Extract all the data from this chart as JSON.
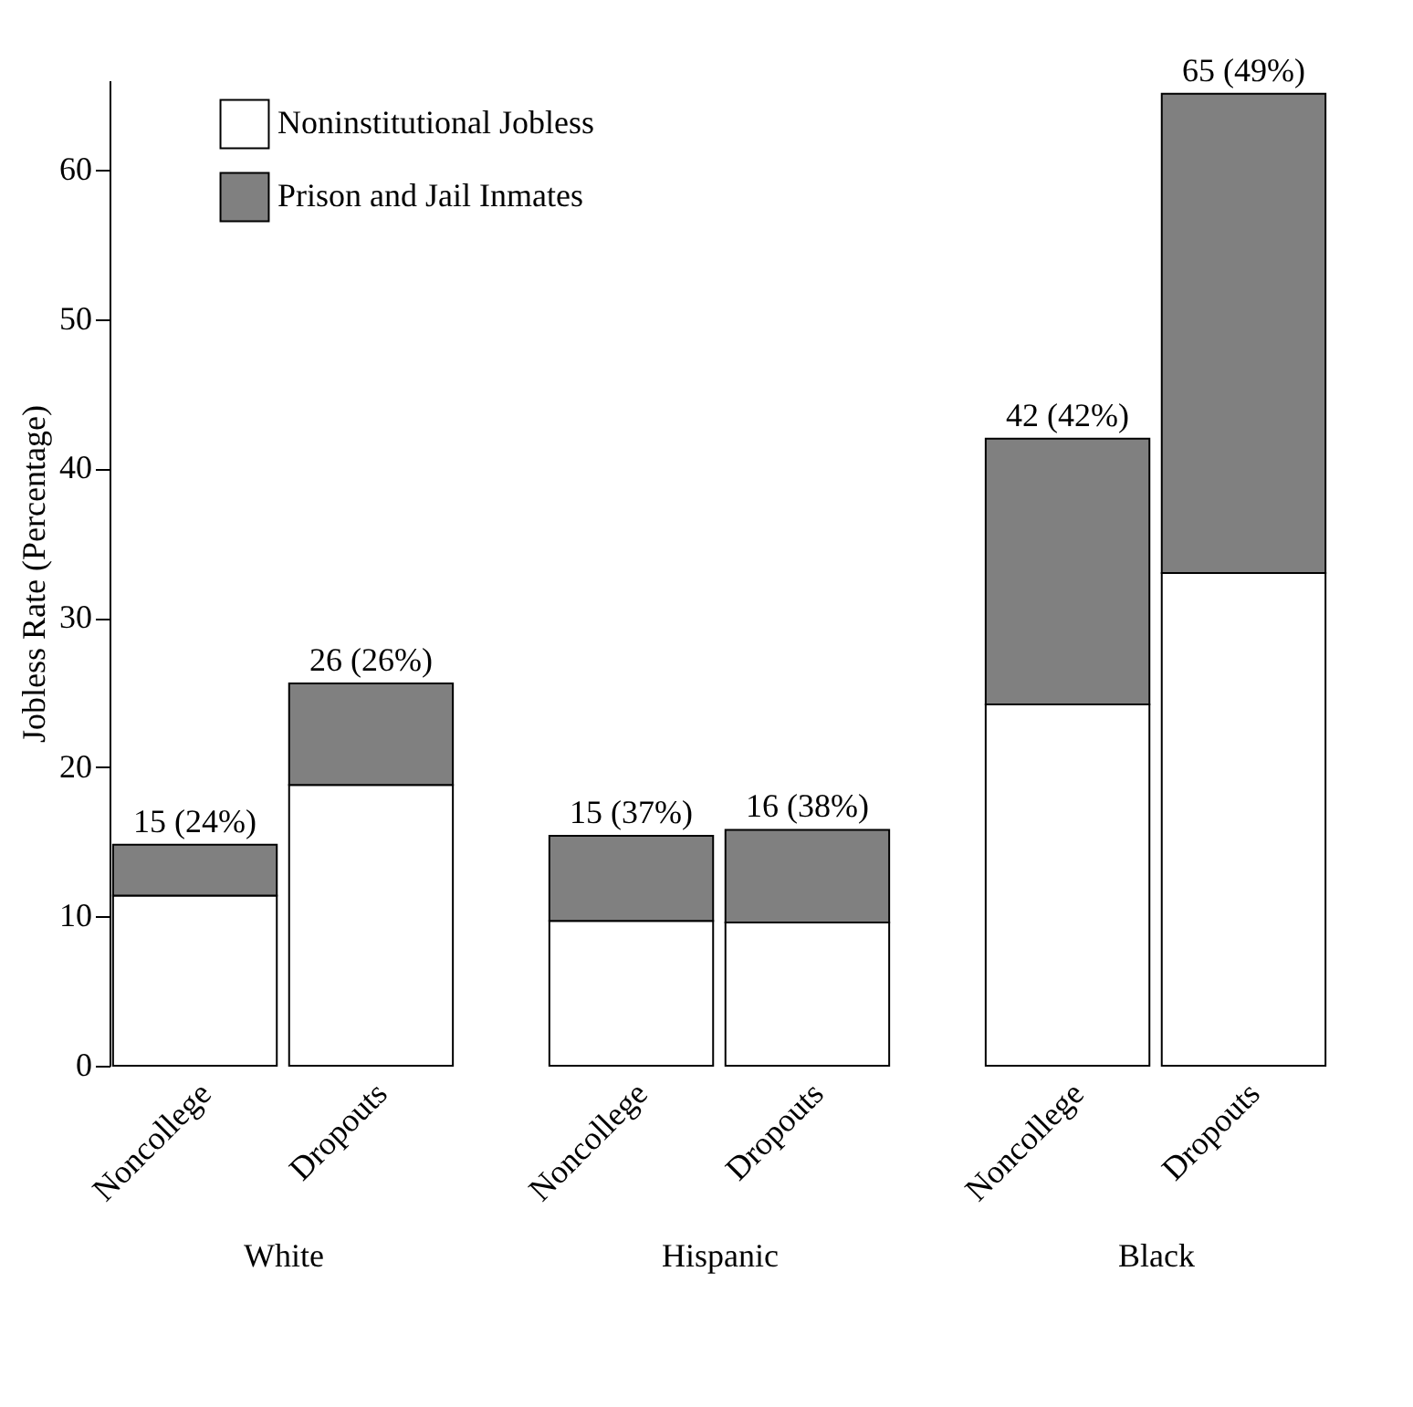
{
  "chart_data": {
    "type": "bar",
    "stacked": true,
    "ylabel": "Jobless Rate (Percentage)",
    "categories": [
      "Noncollege",
      "Dropouts",
      "Noncollege",
      "Dropouts",
      "Noncollege",
      "Dropouts"
    ],
    "series": [
      {
        "name": "Noninstitutional Jobless",
        "color": "#ffffff",
        "values": [
          11.4,
          18.8,
          9.7,
          9.6,
          24.2,
          33.0
        ]
      },
      {
        "name": "Prison and Jail Inmates",
        "color": "#808080",
        "values": [
          3.4,
          6.8,
          5.7,
          6.2,
          17.8,
          32.1
        ]
      }
    ],
    "totals": [
      "15 (24%)",
      "26 (26%)",
      "15 (37%)",
      "16 (38%)",
      "42 (42%)",
      "65 (49%)"
    ],
    "annotations": [
      "White",
      "Hispanic",
      "Black"
    ],
    "ylim": [
      0,
      66
    ],
    "yticks": [
      0,
      10,
      20,
      30,
      40,
      50,
      60
    ],
    "grid": false,
    "legend": "top left"
  }
}
